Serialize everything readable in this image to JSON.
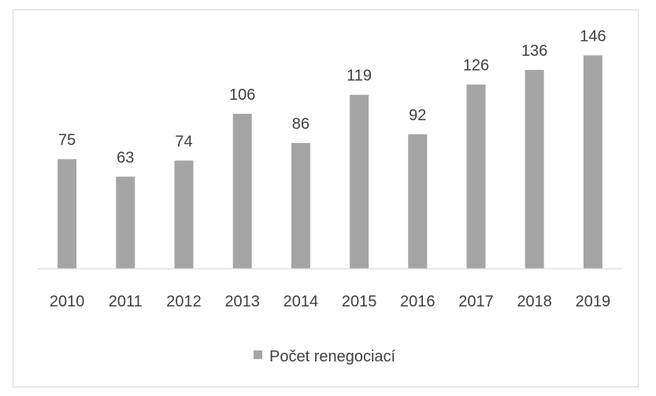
{
  "chart_data": {
    "type": "bar",
    "title": "",
    "xlabel": "",
    "ylabel": "",
    "categories": [
      "2010",
      "2011",
      "2012",
      "2013",
      "2014",
      "2015",
      "2016",
      "2017",
      "2018",
      "2019"
    ],
    "series": [
      {
        "name": "Počet renegociací",
        "color": "#a5a5a5",
        "values": [
          75,
          63,
          74,
          106,
          86,
          119,
          92,
          126,
          136,
          146
        ]
      }
    ],
    "ylim": [
      0,
      160
    ],
    "grid": false,
    "data_labels": true,
    "legend_position": "bottom"
  }
}
